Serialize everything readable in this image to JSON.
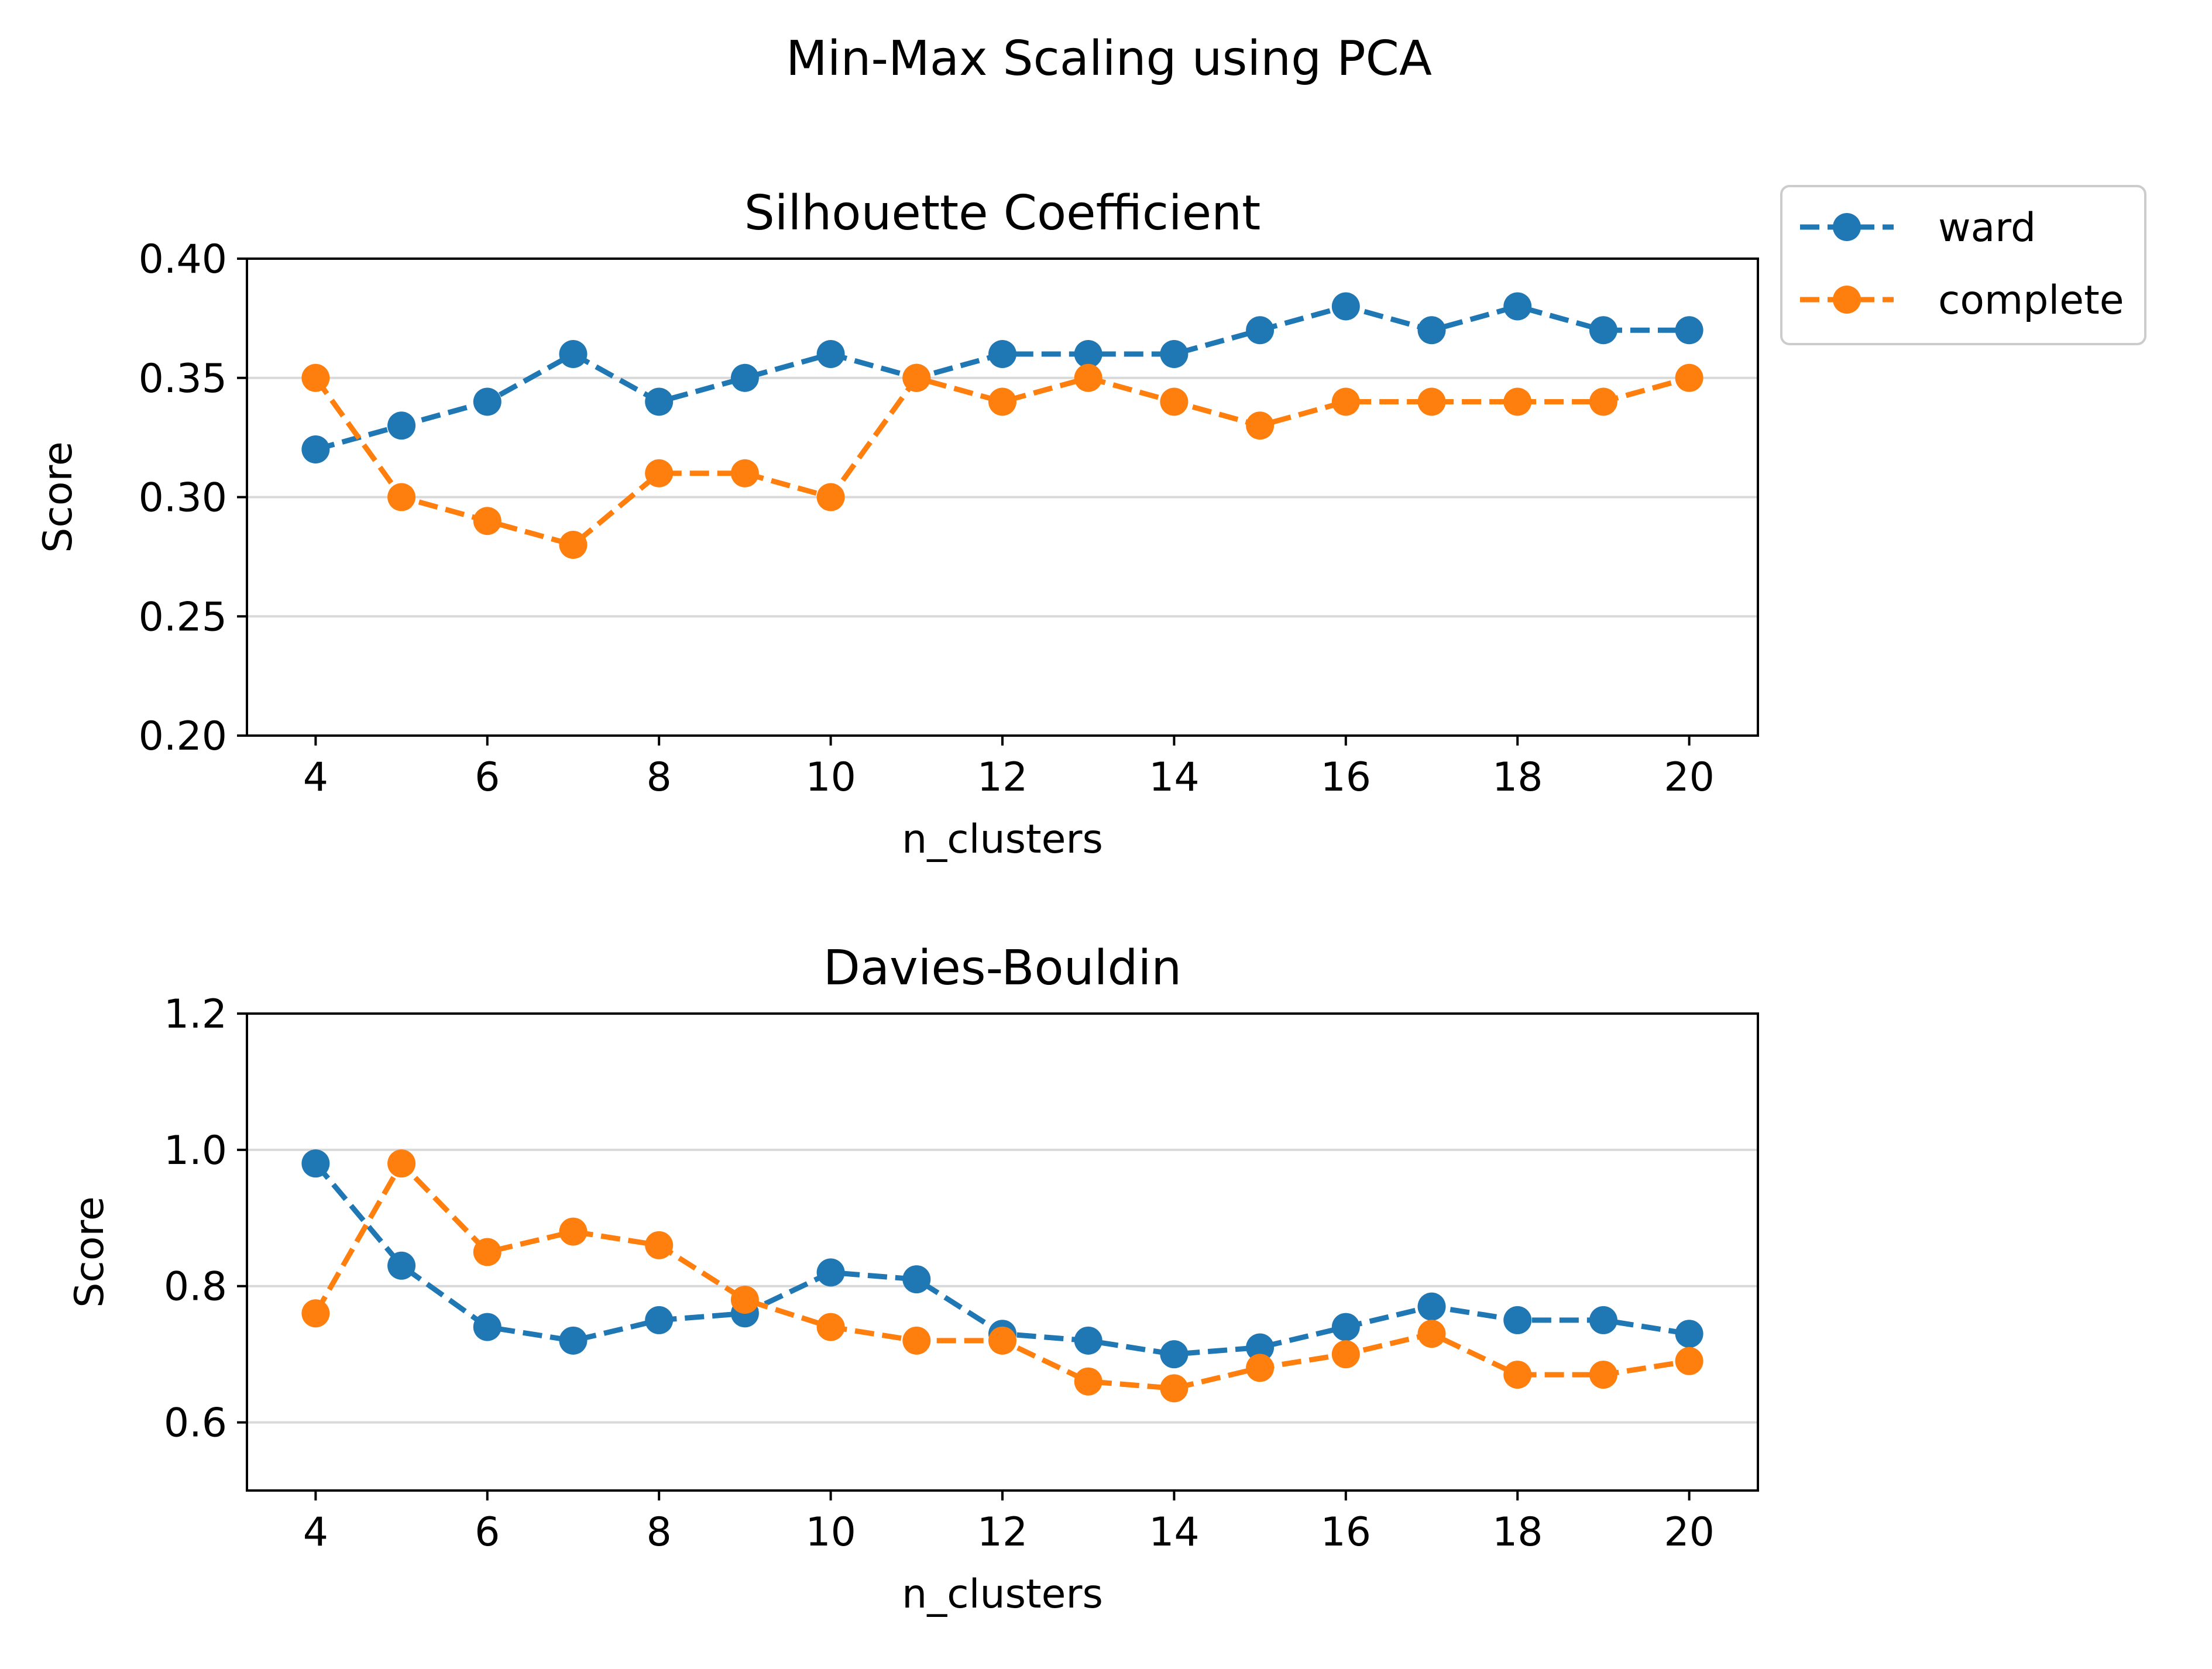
{
  "figure": {
    "suptitle": "Min-Max Scaling using PCA"
  },
  "legend": {
    "placement": "outside-top-right",
    "entries": [
      {
        "label": "ward",
        "color": "#1f77b4"
      },
      {
        "label": "complete",
        "color": "#ff7f0e"
      }
    ]
  },
  "chart_data": [
    {
      "type": "line",
      "title": "Silhouette Coefficient",
      "xlabel": "n_clusters",
      "ylabel": "Score",
      "xlim": [
        3.2,
        20.8
      ],
      "ylim": [
        0.2,
        0.4
      ],
      "xticks": [
        4,
        6,
        8,
        10,
        12,
        14,
        16,
        18,
        20
      ],
      "xtick_labels": [
        "4",
        "6",
        "8",
        "10",
        "12",
        "14",
        "16",
        "18",
        "20"
      ],
      "yticks": [
        0.2,
        0.25,
        0.3,
        0.35,
        0.4
      ],
      "ytick_labels": [
        "0.20",
        "0.25",
        "0.30",
        "0.35",
        "0.40"
      ],
      "grid": "y",
      "line_style": "dashed",
      "marker": "circle",
      "x": [
        4,
        5,
        6,
        7,
        8,
        9,
        10,
        11,
        12,
        13,
        14,
        15,
        16,
        17,
        18,
        19,
        20
      ],
      "series": [
        {
          "name": "ward",
          "color": "#1f77b4",
          "values": [
            0.32,
            0.33,
            0.34,
            0.36,
            0.34,
            0.35,
            0.36,
            0.35,
            0.36,
            0.36,
            0.36,
            0.37,
            0.38,
            0.37,
            0.38,
            0.37,
            0.37
          ]
        },
        {
          "name": "complete",
          "color": "#ff7f0e",
          "values": [
            0.35,
            0.3,
            0.29,
            0.28,
            0.31,
            0.31,
            0.3,
            0.35,
            0.34,
            0.35,
            0.34,
            0.33,
            0.34,
            0.34,
            0.34,
            0.34,
            0.35
          ]
        }
      ]
    },
    {
      "type": "line",
      "title": "Davies-Bouldin",
      "xlabel": "n_clusters",
      "ylabel": "Score",
      "xlim": [
        3.2,
        20.8
      ],
      "ylim": [
        0.5,
        1.2
      ],
      "xticks": [
        4,
        6,
        8,
        10,
        12,
        14,
        16,
        18,
        20
      ],
      "xtick_labels": [
        "4",
        "6",
        "8",
        "10",
        "12",
        "14",
        "16",
        "18",
        "20"
      ],
      "yticks": [
        0.6,
        0.8,
        1.0,
        1.2
      ],
      "ytick_labels": [
        "0.6",
        "0.8",
        "1.0",
        "1.2"
      ],
      "grid": "y",
      "line_style": "dashed",
      "marker": "circle",
      "x": [
        4,
        5,
        6,
        7,
        8,
        9,
        10,
        11,
        12,
        13,
        14,
        15,
        16,
        17,
        18,
        19,
        20
      ],
      "series": [
        {
          "name": "ward",
          "color": "#1f77b4",
          "values": [
            0.98,
            0.83,
            0.74,
            0.72,
            0.75,
            0.76,
            0.82,
            0.81,
            0.73,
            0.72,
            0.7,
            0.71,
            0.74,
            0.77,
            0.75,
            0.75,
            0.73
          ]
        },
        {
          "name": "complete",
          "color": "#ff7f0e",
          "values": [
            0.76,
            0.98,
            0.85,
            0.88,
            0.86,
            0.78,
            0.74,
            0.72,
            0.72,
            0.66,
            0.65,
            0.68,
            0.7,
            0.73,
            0.67,
            0.67,
            0.69
          ]
        }
      ]
    }
  ]
}
